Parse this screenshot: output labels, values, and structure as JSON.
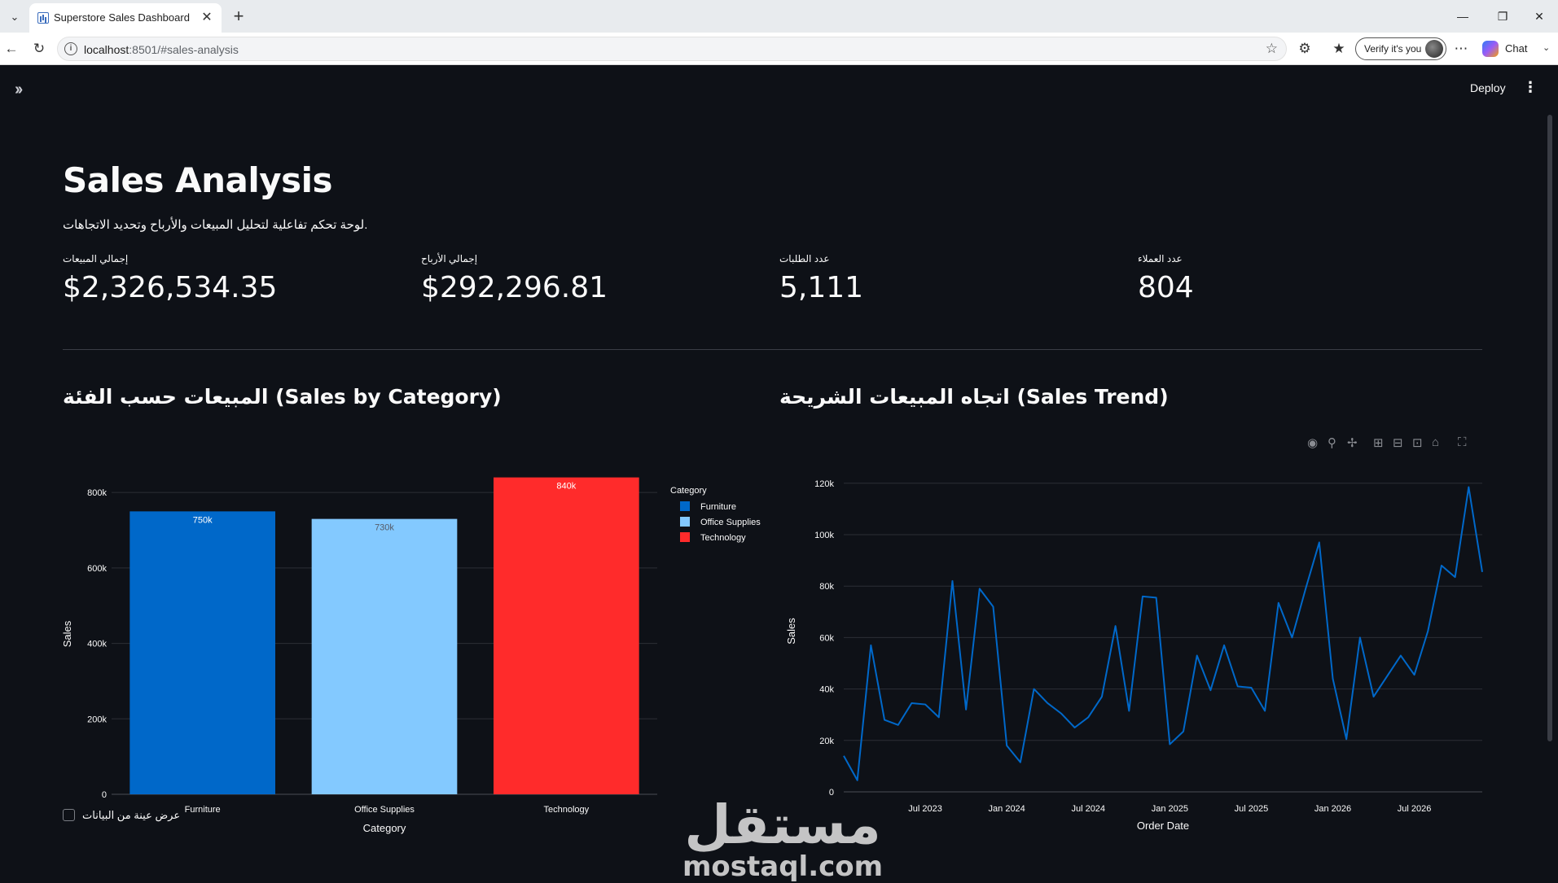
{
  "browser": {
    "tab_title": "Superstore Sales Dashboard",
    "url_host": "localhost",
    "url_path": ":8501/#sales-analysis",
    "verify_label": "Verify it's you",
    "copilot_label": "Chat"
  },
  "app": {
    "deploy_label": "Deploy",
    "title": "Sales Analysis",
    "subtitle": "لوحة تحكم تفاعلية لتحليل المبيعات والأرباح وتحديد الاتجاهات.",
    "metrics": [
      {
        "label": "إجمالي المبيعات",
        "value": "$2,326,534.35"
      },
      {
        "label": "إجمالي الأرباح",
        "value": "$292,296.81"
      },
      {
        "label": "عدد الطلبات",
        "value": "5,111"
      },
      {
        "label": "عدد العملاء",
        "value": "804"
      }
    ],
    "category_section_title": "المبيعات حسب الفئة (Sales by Category)",
    "trend_section_title": "اتجاه المبيعات الشريحة (Sales Trend)",
    "checkbox_label": "عرض عينة من البيانات",
    "watermark_arabic": "مستقل",
    "watermark_latin": "mostaql.com"
  },
  "chart_data": [
    {
      "type": "bar",
      "categories": [
        "Furniture",
        "Office Supplies",
        "Technology"
      ],
      "values": [
        750000,
        730000,
        840000
      ],
      "data_labels": [
        "750k",
        "730k",
        "840k"
      ],
      "colors": [
        "#0068c9",
        "#83c9ff",
        "#ff2b2b"
      ],
      "xlabel": "Category",
      "ylabel": "Sales",
      "ylim": [
        0,
        850000
      ],
      "yticks": [
        0,
        200000,
        400000,
        600000,
        800000
      ],
      "ytick_labels": [
        "0",
        "200k",
        "400k",
        "600k",
        "800k"
      ],
      "legend_title": "Category",
      "legend": [
        "Furniture",
        "Office Supplies",
        "Technology"
      ],
      "legend_position": "top-right",
      "grid": true
    },
    {
      "type": "line",
      "x": [
        "2023-01",
        "2023-02",
        "2023-03",
        "2023-04",
        "2023-05",
        "2023-06",
        "2023-07",
        "2023-08",
        "2023-09",
        "2023-10",
        "2023-11",
        "2023-12",
        "2024-01",
        "2024-02",
        "2024-03",
        "2024-04",
        "2024-05",
        "2024-06",
        "2024-07",
        "2024-08",
        "2024-09",
        "2024-10",
        "2024-11",
        "2024-12",
        "2025-01",
        "2025-02",
        "2025-03",
        "2025-04",
        "2025-05",
        "2025-06",
        "2025-07",
        "2025-08",
        "2025-09",
        "2025-10",
        "2025-11",
        "2025-12",
        "2026-01",
        "2026-02",
        "2026-03",
        "2026-04",
        "2026-05",
        "2026-06",
        "2026-07",
        "2026-08",
        "2026-09",
        "2026-10",
        "2026-11",
        "2026-12"
      ],
      "y": [
        14000,
        4500,
        57000,
        28000,
        26000,
        34500,
        34000,
        29000,
        82000,
        32000,
        79000,
        72000,
        18000,
        11500,
        40000,
        34500,
        30500,
        25000,
        29000,
        37000,
        64500,
        31500,
        76000,
        75500,
        18500,
        23500,
        53000,
        39500,
        57000,
        41000,
        40500,
        31500,
        73500,
        60000,
        79000,
        97000,
        44000,
        20500,
        60000,
        37000,
        45000,
        53000,
        45500,
        62500,
        88000,
        83500,
        118500,
        85500
      ],
      "xlabel": "Order Date",
      "ylabel": "Sales",
      "ylim": [
        0,
        125000
      ],
      "yticks": [
        0,
        20000,
        40000,
        60000,
        80000,
        100000,
        120000
      ],
      "ytick_labels": [
        "0",
        "20k",
        "40k",
        "60k",
        "80k",
        "100k",
        "120k"
      ],
      "xtick_labels": [
        "Jul 2023",
        "Jan 2024",
        "Jul 2024",
        "Jan 2025",
        "Jul 2025",
        "Jan 2026",
        "Jul 2026"
      ],
      "xtick_at": [
        "2023-07",
        "2024-01",
        "2024-07",
        "2025-01",
        "2025-07",
        "2026-01",
        "2026-07"
      ],
      "color": "#0068c9",
      "grid": true
    }
  ]
}
